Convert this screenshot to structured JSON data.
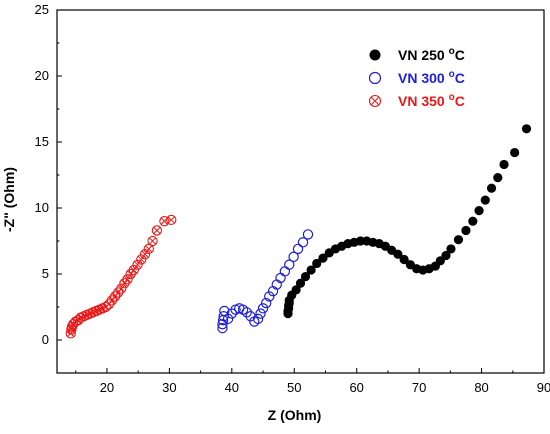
{
  "chart_data": {
    "type": "scatter",
    "xlabel": "Z (Ohm)",
    "ylabel": "-Z\" (Ohm)",
    "xlim": [
      12,
      90
    ],
    "ylim": [
      -2.5,
      25
    ],
    "xticks": [
      20,
      30,
      40,
      50,
      60,
      70,
      80,
      90
    ],
    "yticks": [
      0,
      5,
      10,
      15,
      20,
      25
    ],
    "legend_position": "top-right",
    "series": [
      {
        "name": "VN 250",
        "name_suffix": "oC",
        "color": "#000000",
        "marker": "filled-circle",
        "points": [
          [
            49.0,
            2.0
          ],
          [
            49.0,
            2.2
          ],
          [
            49.1,
            2.4
          ],
          [
            49.1,
            2.6
          ],
          [
            49.2,
            2.8
          ],
          [
            49.2,
            3.0
          ],
          [
            49.6,
            3.4
          ],
          [
            50.3,
            3.8
          ],
          [
            51.0,
            4.3
          ],
          [
            51.8,
            4.8
          ],
          [
            52.7,
            5.3
          ],
          [
            53.6,
            5.8
          ],
          [
            54.6,
            6.2
          ],
          [
            55.6,
            6.6
          ],
          [
            56.6,
            6.9
          ],
          [
            57.6,
            7.1
          ],
          [
            58.6,
            7.3
          ],
          [
            59.6,
            7.4
          ],
          [
            60.6,
            7.5
          ],
          [
            61.6,
            7.5
          ],
          [
            62.6,
            7.4
          ],
          [
            63.6,
            7.3
          ],
          [
            64.6,
            7.1
          ],
          [
            65.6,
            6.8
          ],
          [
            66.6,
            6.5
          ],
          [
            67.6,
            6.1
          ],
          [
            68.6,
            5.7
          ],
          [
            69.6,
            5.4
          ],
          [
            70.6,
            5.3
          ],
          [
            71.6,
            5.4
          ],
          [
            72.6,
            5.6
          ],
          [
            73.4,
            6.0
          ],
          [
            74.3,
            6.4
          ],
          [
            75.1,
            6.9
          ],
          [
            76.3,
            7.6
          ],
          [
            77.5,
            8.3
          ],
          [
            78.6,
            9.0
          ],
          [
            79.6,
            9.8
          ],
          [
            80.6,
            10.6
          ],
          [
            81.6,
            11.5
          ],
          [
            82.6,
            12.3
          ],
          [
            83.6,
            13.3
          ],
          [
            85.3,
            14.2
          ],
          [
            87.2,
            16.0
          ]
        ]
      },
      {
        "name": "VN 300",
        "name_suffix": "oC",
        "color": "#1f1fd6",
        "marker": "open-circle",
        "points": [
          [
            38.5,
            0.9
          ],
          [
            38.5,
            1.2
          ],
          [
            38.6,
            1.5
          ],
          [
            38.7,
            1.8
          ],
          [
            38.8,
            2.2
          ],
          [
            39.4,
            1.6
          ],
          [
            40.0,
            2.0
          ],
          [
            40.6,
            2.3
          ],
          [
            41.2,
            2.4
          ],
          [
            41.8,
            2.3
          ],
          [
            42.4,
            2.1
          ],
          [
            43.0,
            1.8
          ],
          [
            43.6,
            1.4
          ],
          [
            44.2,
            1.6
          ],
          [
            44.6,
            2.0
          ],
          [
            45.0,
            2.4
          ],
          [
            45.5,
            2.8
          ],
          [
            46.0,
            3.3
          ],
          [
            46.6,
            3.7
          ],
          [
            47.2,
            4.2
          ],
          [
            47.8,
            4.7
          ],
          [
            48.5,
            5.2
          ],
          [
            49.2,
            5.7
          ],
          [
            49.9,
            6.3
          ],
          [
            50.6,
            6.9
          ],
          [
            51.4,
            7.4
          ],
          [
            52.2,
            8.0
          ]
        ]
      },
      {
        "name": "VN  350",
        "name_suffix": "oC",
        "color": "#e81818",
        "marker": "crossed-circle",
        "points": [
          [
            14.2,
            0.5
          ],
          [
            14.3,
            0.8
          ],
          [
            14.4,
            1.0
          ],
          [
            14.6,
            1.2
          ],
          [
            15.0,
            1.4
          ],
          [
            15.4,
            1.5
          ],
          [
            15.8,
            1.7
          ],
          [
            16.3,
            1.8
          ],
          [
            16.8,
            1.9
          ],
          [
            17.3,
            2.0
          ],
          [
            17.8,
            2.1
          ],
          [
            18.3,
            2.2
          ],
          [
            18.8,
            2.3
          ],
          [
            19.3,
            2.4
          ],
          [
            19.8,
            2.5
          ],
          [
            20.3,
            2.7
          ],
          [
            20.8,
            3.0
          ],
          [
            21.3,
            3.3
          ],
          [
            21.8,
            3.6
          ],
          [
            22.3,
            3.9
          ],
          [
            22.8,
            4.3
          ],
          [
            23.3,
            4.6
          ],
          [
            23.8,
            5.0
          ],
          [
            24.3,
            5.3
          ],
          [
            24.9,
            5.7
          ],
          [
            25.5,
            6.1
          ],
          [
            26.1,
            6.5
          ],
          [
            26.7,
            6.9
          ],
          [
            27.3,
            7.5
          ],
          [
            28.0,
            8.3
          ],
          [
            29.2,
            9.0
          ],
          [
            30.3,
            9.1
          ]
        ]
      }
    ]
  }
}
